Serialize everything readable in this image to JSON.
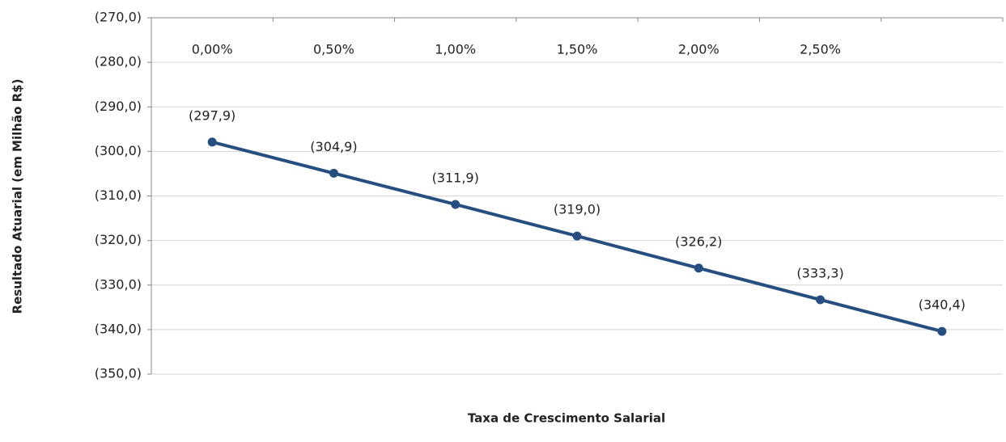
{
  "chart_data": {
    "type": "line",
    "x_label": "Taxa de Crescimento Salarial",
    "y_label": "Resultado Atuarial (em Milhão R$)",
    "categories": [
      "0,00%",
      "0,50%",
      "1,00%",
      "1,50%",
      "2,00%",
      "2,50%",
      null
    ],
    "series": [
      {
        "color": "#264f80",
        "values": [
          -297.9,
          -304.9,
          -311.9,
          -319.0,
          -326.2,
          -333.3,
          -340.4
        ],
        "value_labels": [
          "(297,9)",
          "(304,9)",
          "(311,9)",
          "(319,0)",
          "(326,2)",
          "(333,3)",
          "(340,4)"
        ]
      }
    ],
    "ylim": [
      -350,
      -270
    ],
    "yticks": [
      {
        "value": -350,
        "label": "(350,0)"
      },
      {
        "value": -340,
        "label": "(340,0)"
      },
      {
        "value": -330,
        "label": "(330,0)"
      },
      {
        "value": -320,
        "label": "(320,0)"
      },
      {
        "value": -310,
        "label": "(310,0)"
      },
      {
        "value": -300,
        "label": "(300,0)"
      },
      {
        "value": -290,
        "label": "(290,0)"
      },
      {
        "value": -280,
        "label": "(280,0)"
      },
      {
        "value": -270,
        "label": "(270,0)"
      }
    ],
    "grid": true
  }
}
